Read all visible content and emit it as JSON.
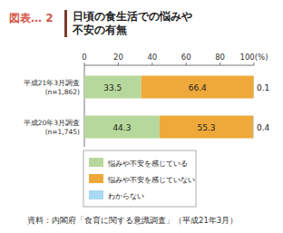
{
  "chart_data": {
    "type": "bar",
    "figure_label": "図表… 2",
    "title": "日頃の食生活での悩みや\n不安の有無",
    "source": "資料：内閣府「食育に関する意識調査」（平成21年3月）",
    "orientation": "horizontal",
    "stacked": true,
    "data_labels": true,
    "grid": false,
    "legend": "bottom",
    "categories": [
      "平成21年3月調査\n(n=1,862)",
      "平成20年3月調査\n(n=1,745)"
    ],
    "series": [
      {
        "name": "悩みや不安を感じている",
        "color": "#b7d89c",
        "values": [
          33.5,
          44.3
        ]
      },
      {
        "name": "悩みや不安を感じていない",
        "color": "#eea93a",
        "values": [
          66.4,
          55.3
        ]
      },
      {
        "name": "わからない",
        "color": "#a9d9f2",
        "values": [
          0.1,
          0.4
        ]
      }
    ],
    "xlim": [
      0,
      100
    ],
    "xticks": [
      0,
      20,
      40,
      60,
      80,
      {
        "value": 100,
        "label": "100(%)"
      }
    ]
  }
}
